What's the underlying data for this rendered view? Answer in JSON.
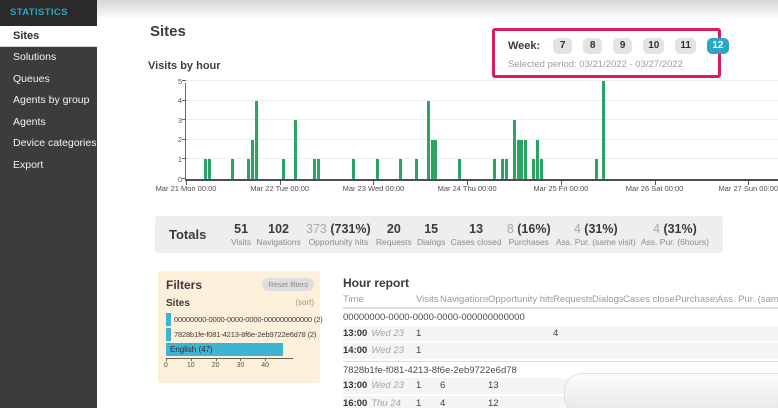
{
  "colors": {
    "accent": "#2ca7c7",
    "accent2": "#3db4d2",
    "green": "#2ba464",
    "pink": "#de1b61"
  },
  "sidebar": {
    "header": "STATISTICS",
    "items": [
      {
        "label": "Sites",
        "active": true
      },
      {
        "label": "Solutions",
        "active": false
      },
      {
        "label": "Queues",
        "active": false
      },
      {
        "label": "Agents by group",
        "active": false
      },
      {
        "label": "Agents",
        "active": false
      },
      {
        "label": "Device categories",
        "active": false
      },
      {
        "label": "Export",
        "active": false
      }
    ]
  },
  "page": {
    "title": "Sites"
  },
  "week_selector": {
    "label": "Week:",
    "weeks": [
      "7",
      "8",
      "9",
      "10",
      "11",
      "12"
    ],
    "selected": "12",
    "period": "Selected period: 03/21/2022 - 03/27/2022"
  },
  "chart_data": {
    "type": "bar",
    "title": "Visits by hour",
    "ylim": [
      0,
      5
    ],
    "yticks": [
      0,
      1,
      2,
      3,
      4,
      5
    ],
    "x_day_labels": [
      "Mar 21 Mon 00:00",
      "Mar 22 Tue 00:00",
      "Mar 23 Wed 00:00",
      "Mar 24 Thu 00:00",
      "Mar 25 Fri 00:00",
      "Mar 26 Sat 00:00",
      "Mar 27 Sun 00:00"
    ],
    "hours_per_day": 24,
    "bars": [
      {
        "hour": 5,
        "value": 1
      },
      {
        "hour": 6,
        "value": 1
      },
      {
        "hour": 12,
        "value": 1
      },
      {
        "hour": 16,
        "value": 1
      },
      {
        "hour": 17,
        "value": 2
      },
      {
        "hour": 18,
        "value": 4
      },
      {
        "hour": 25,
        "value": 1
      },
      {
        "hour": 28,
        "value": 3
      },
      {
        "hour": 33,
        "value": 1
      },
      {
        "hour": 34,
        "value": 1
      },
      {
        "hour": 43,
        "value": 1
      },
      {
        "hour": 49,
        "value": 1
      },
      {
        "hour": 55,
        "value": 1
      },
      {
        "hour": 59,
        "value": 1
      },
      {
        "hour": 62,
        "value": 4
      },
      {
        "hour": 63,
        "value": 2
      },
      {
        "hour": 64,
        "value": 2
      },
      {
        "hour": 70,
        "value": 1
      },
      {
        "hour": 79,
        "value": 1
      },
      {
        "hour": 81,
        "value": 1
      },
      {
        "hour": 82,
        "value": 1
      },
      {
        "hour": 84,
        "value": 3
      },
      {
        "hour": 85,
        "value": 2
      },
      {
        "hour": 86,
        "value": 2
      },
      {
        "hour": 87,
        "value": 2
      },
      {
        "hour": 89,
        "value": 1
      },
      {
        "hour": 90,
        "value": 2
      },
      {
        "hour": 91,
        "value": 1
      },
      {
        "hour": 105,
        "value": 1
      },
      {
        "hour": 107,
        "value": 5
      }
    ]
  },
  "totals": {
    "label": "Totals",
    "items": [
      {
        "value": "51",
        "label": "Visits"
      },
      {
        "value": "102",
        "label": "Navigations"
      },
      {
        "muted": "373",
        "bold": " (731%)",
        "label": "Opportunity hits"
      },
      {
        "value": "20",
        "label": "Requests"
      },
      {
        "value": "15",
        "label": "Dialogs"
      },
      {
        "value": "13",
        "label": "Cases closed"
      },
      {
        "muted": "8",
        "bold": " (16%)",
        "label": "Purchases"
      },
      {
        "muted": "4",
        "bold": " (31%)",
        "label": "Ass. Pur. (same visit)"
      },
      {
        "muted": "4",
        "bold": " (31%)",
        "label": "Ass. Pur. (6hours)"
      }
    ]
  },
  "filters": {
    "title": "Filters",
    "reset_label": "Reset filters",
    "section_label": "Sites",
    "sort_label": "(sort)",
    "chart_data": {
      "type": "bar-horizontal",
      "categories": [
        "00000000-0000-0000-0000-000000000000 (2)",
        "7828b1fe-f081-4213-8f6e-2eb9722e6d78 (2)",
        "English (47)"
      ],
      "values": [
        2,
        2,
        47
      ],
      "xticks": [
        0,
        10,
        20,
        30,
        40
      ],
      "xlim": [
        0,
        47
      ]
    }
  },
  "hour_report": {
    "title": "Hour report",
    "columns": [
      "Time",
      "Visits",
      "Navigations",
      "Opportunity hits",
      "Requests",
      "Dialogs",
      "Cases closed",
      "Purchases",
      "Ass. Pur. (same visit)"
    ],
    "groups": [
      {
        "id": "00000000-0000-0000-0000-000000000000",
        "rows": [
          {
            "time": "13:00",
            "day": "Wed 23",
            "cells": [
              "1",
              "",
              "",
              "4",
              "",
              "",
              "",
              ""
            ]
          },
          {
            "time": "14:00",
            "day": "Wed 23",
            "cells": [
              "1",
              "",
              "",
              "",
              "",
              "",
              "",
              ""
            ]
          }
        ]
      },
      {
        "id": "7828b1fe-f081-4213-8f6e-2eb9722e6d78",
        "rows": [
          {
            "time": "13:00",
            "day": "Wed 23",
            "cells": [
              "1",
              "6",
              "13",
              "",
              "",
              "",
              "",
              ""
            ]
          },
          {
            "time": "16:00",
            "day": "Thu 24",
            "cells": [
              "1",
              "4",
              "12",
              "",
              "",
              "",
              "",
              ""
            ]
          }
        ]
      }
    ]
  }
}
